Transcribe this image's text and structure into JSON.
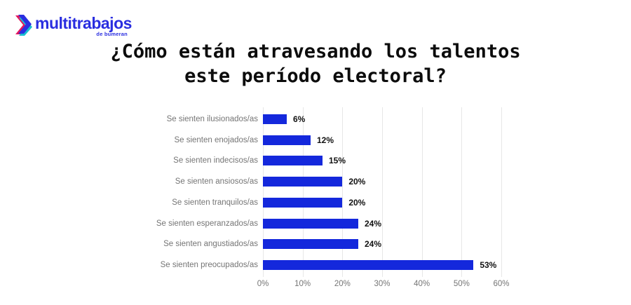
{
  "logo": {
    "brand": "multitrabajos",
    "sub_brand": "de bumeran",
    "brand_color": "#2a2ee0",
    "icon_magenta": "#e3175e",
    "icon_blue": "#2a2ee0",
    "icon_teal": "#17bfd0"
  },
  "title": {
    "line1": "¿Cómo están atravesando los talentos",
    "line2": "este período electoral?"
  },
  "chart_data": {
    "type": "bar",
    "orientation": "horizontal",
    "title": "¿Cómo están atravesando los talentos este período electoral?",
    "categories": [
      "Se sienten ilusionados/as",
      "Se sienten enojados/as",
      "Se sienten indecisos/as",
      "Se sienten ansiosos/as",
      "Se sienten tranquilos/as",
      "Se sienten esperanzados/as",
      "Se sienten angustiados/as",
      "Se sienten preocupados/as"
    ],
    "values": [
      6,
      12,
      15,
      20,
      20,
      24,
      24,
      53
    ],
    "value_labels": [
      "6%",
      "12%",
      "15%",
      "20%",
      "20%",
      "24%",
      "24%",
      "53%"
    ],
    "xlim": [
      0,
      60
    ],
    "x_ticks": [
      0,
      10,
      20,
      30,
      40,
      50,
      60
    ],
    "x_tick_labels": [
      "0%",
      "10%",
      "20%",
      "30%",
      "40%",
      "50%",
      "60%"
    ],
    "bar_color": "#1428dc",
    "grid": true,
    "legend": "none",
    "xlabel": "",
    "ylabel": ""
  }
}
